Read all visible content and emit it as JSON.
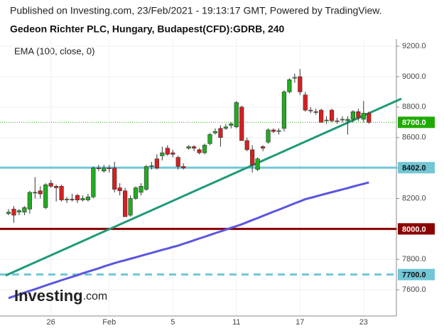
{
  "chart_data": {
    "type": "candlestick",
    "published": "Published on Investing.com, 23/Feb/2021 - 19:13:17 GMT, Powered by TradingView.",
    "title": "Gedeon Richter PLC, Hungary, Budapest(CFD):GDRB, 240",
    "logo": {
      "main": "Investing",
      "suffix": ".com"
    },
    "categories": [
      null,
      null,
      null,
      null,
      null,
      null,
      null,
      null,
      "26",
      null,
      null,
      null,
      null,
      null,
      null,
      null,
      null,
      null,
      null,
      "Feb",
      null,
      null,
      null,
      null,
      null,
      null,
      null,
      null,
      null,
      null,
      null,
      "5",
      null,
      null,
      null,
      null,
      null,
      null,
      null,
      null,
      null,
      null,
      null,
      "11",
      null,
      null,
      null,
      null,
      null,
      null,
      null,
      null,
      null,
      null,
      null,
      "17",
      null,
      null,
      null,
      null,
      null,
      null,
      null,
      null,
      null,
      null,
      null,
      "23",
      null
    ],
    "open": [
      8100,
      8130,
      8110,
      8110,
      8130,
      8240,
      8250,
      8140,
      8300,
      8280,
      8280,
      8190,
      8195,
      8220,
      8190,
      8190,
      8210,
      8400,
      8380,
      8400,
      8400,
      8270,
      8250,
      8090,
      8200,
      8240,
      8260,
      8410,
      8460,
      8480,
      8530,
      8500,
      8470,
      8410,
      8530,
      8540,
      8520,
      8500,
      8560,
      8630,
      8660,
      8660,
      8680,
      8670,
      8800,
      8580,
      8520,
      8390,
      8540,
      8570,
      8650,
      8640,
      8660,
      8900,
      8990,
      9000,
      8880,
      8780,
      8770,
      8780,
      8710,
      8780,
      8710,
      8715,
      8710,
      8720,
      8770,
      8720,
      8760
    ],
    "high": [
      8130,
      8150,
      8130,
      8150,
      8250,
      8340,
      8280,
      8300,
      8320,
      8290,
      8290,
      8210,
      8230,
      8230,
      8220,
      8230,
      8410,
      8420,
      8420,
      8420,
      8440,
      8300,
      8270,
      8220,
      8280,
      8300,
      8420,
      8440,
      8490,
      8540,
      8550,
      8520,
      8480,
      8430,
      8550,
      8550,
      8530,
      8560,
      8630,
      8660,
      8680,
      8690,
      8700,
      8840,
      8810,
      8600,
      8550,
      8470,
      8550,
      8660,
      8660,
      8660,
      8910,
      8990,
      9020,
      9050,
      8900,
      8800,
      8790,
      8790,
      8740,
      8790,
      8730,
      8740,
      8740,
      8780,
      8790,
      8840,
      8770
    ],
    "low": [
      8090,
      8040,
      8090,
      8090,
      8100,
      8200,
      8200,
      8130,
      8270,
      8180,
      8180,
      8170,
      8180,
      8170,
      8180,
      8180,
      8200,
      8380,
      8370,
      8370,
      8240,
      8220,
      8080,
      8080,
      8190,
      8220,
      8250,
      8390,
      8390,
      8450,
      8480,
      8470,
      8390,
      8390,
      8520,
      8510,
      8490,
      8490,
      8550,
      8620,
      8540,
      8650,
      8660,
      8660,
      8580,
      8510,
      8370,
      8380,
      8510,
      8560,
      8630,
      8620,
      8640,
      8890,
      8960,
      8880,
      8770,
      8760,
      8750,
      8700,
      8690,
      8700,
      8690,
      8700,
      8620,
      8700,
      8710,
      8700,
      8690
    ],
    "close": [
      8110,
      8090,
      8120,
      8140,
      8240,
      8240,
      8230,
      8290,
      8280,
      8270,
      8190,
      8195,
      8190,
      8190,
      8200,
      8210,
      8400,
      8395,
      8400,
      8395,
      8260,
      8250,
      8080,
      8200,
      8270,
      8280,
      8410,
      8415,
      8400,
      8500,
      8490,
      8490,
      8410,
      8400,
      8540,
      8530,
      8500,
      8550,
      8620,
      8640,
      8600,
      8670,
      8690,
      8830,
      8580,
      8520,
      8420,
      8460,
      8530,
      8650,
      8640,
      8645,
      8900,
      8980,
      8995,
      8900,
      8780,
      8775,
      8765,
      8700,
      8715,
      8710,
      8705,
      8720,
      8720,
      8770,
      8730,
      8760,
      8700
    ],
    "up_color": "#22ab22",
    "down_color": "#d62020",
    "ema": {
      "name": "EMA (100, close, 0)",
      "color": "#5b55e0",
      "values": [
        7545,
        7557,
        7569,
        7581,
        7593,
        7604,
        7616,
        7628,
        7640,
        7651,
        7663,
        7674,
        7685,
        7696,
        7708,
        7719,
        7730,
        7741,
        7753,
        7764,
        7775,
        7785,
        7794,
        7804,
        7813,
        7823,
        7833,
        7842,
        7852,
        7862,
        7871,
        7881,
        7890,
        7902,
        7913,
        7925,
        7937,
        7948,
        7960,
        7972,
        7983,
        7995,
        8007,
        8018,
        8030,
        8044,
        8058,
        8071,
        8085,
        8099,
        8113,
        8126,
        8140,
        8154,
        8168,
        8181,
        8195,
        8204,
        8213,
        8223,
        8232,
        8241,
        8250,
        8259,
        8268,
        8278,
        8287,
        8296,
        8305
      ]
    },
    "trend_line": {
      "values": [
        7694,
        8855
      ],
      "color": "#1f9a78"
    },
    "levels": [
      {
        "value": 8402,
        "label": "8402.0",
        "color": "#72c6d6",
        "style": "solid"
      },
      {
        "value": 8000,
        "label": "8000.0",
        "color": "#8b0000",
        "style": "solid"
      },
      {
        "value": 7700,
        "label": "7700.0",
        "color": "#72c6d6",
        "style": "dashed"
      }
    ],
    "last_price": {
      "value": 8700,
      "label": "8700.0",
      "color": "#1faa00"
    },
    "ylim": [
      7428,
      9247
    ],
    "yticks": [
      {
        "value": 7600,
        "label": "7600.0"
      },
      {
        "value": 7800,
        "label": "7800.0"
      },
      {
        "value": 8000,
        "label": "8000.0"
      },
      {
        "value": 8200,
        "label": "8200.0"
      },
      {
        "value": 8400,
        "label": "8400.0"
      },
      {
        "value": 8600,
        "label": "8600.0"
      },
      {
        "value": 8800,
        "label": "8800.0"
      },
      {
        "value": 9000,
        "label": "9000.0"
      },
      {
        "value": 9200,
        "label": "9200.0"
      }
    ],
    "grid": true
  }
}
